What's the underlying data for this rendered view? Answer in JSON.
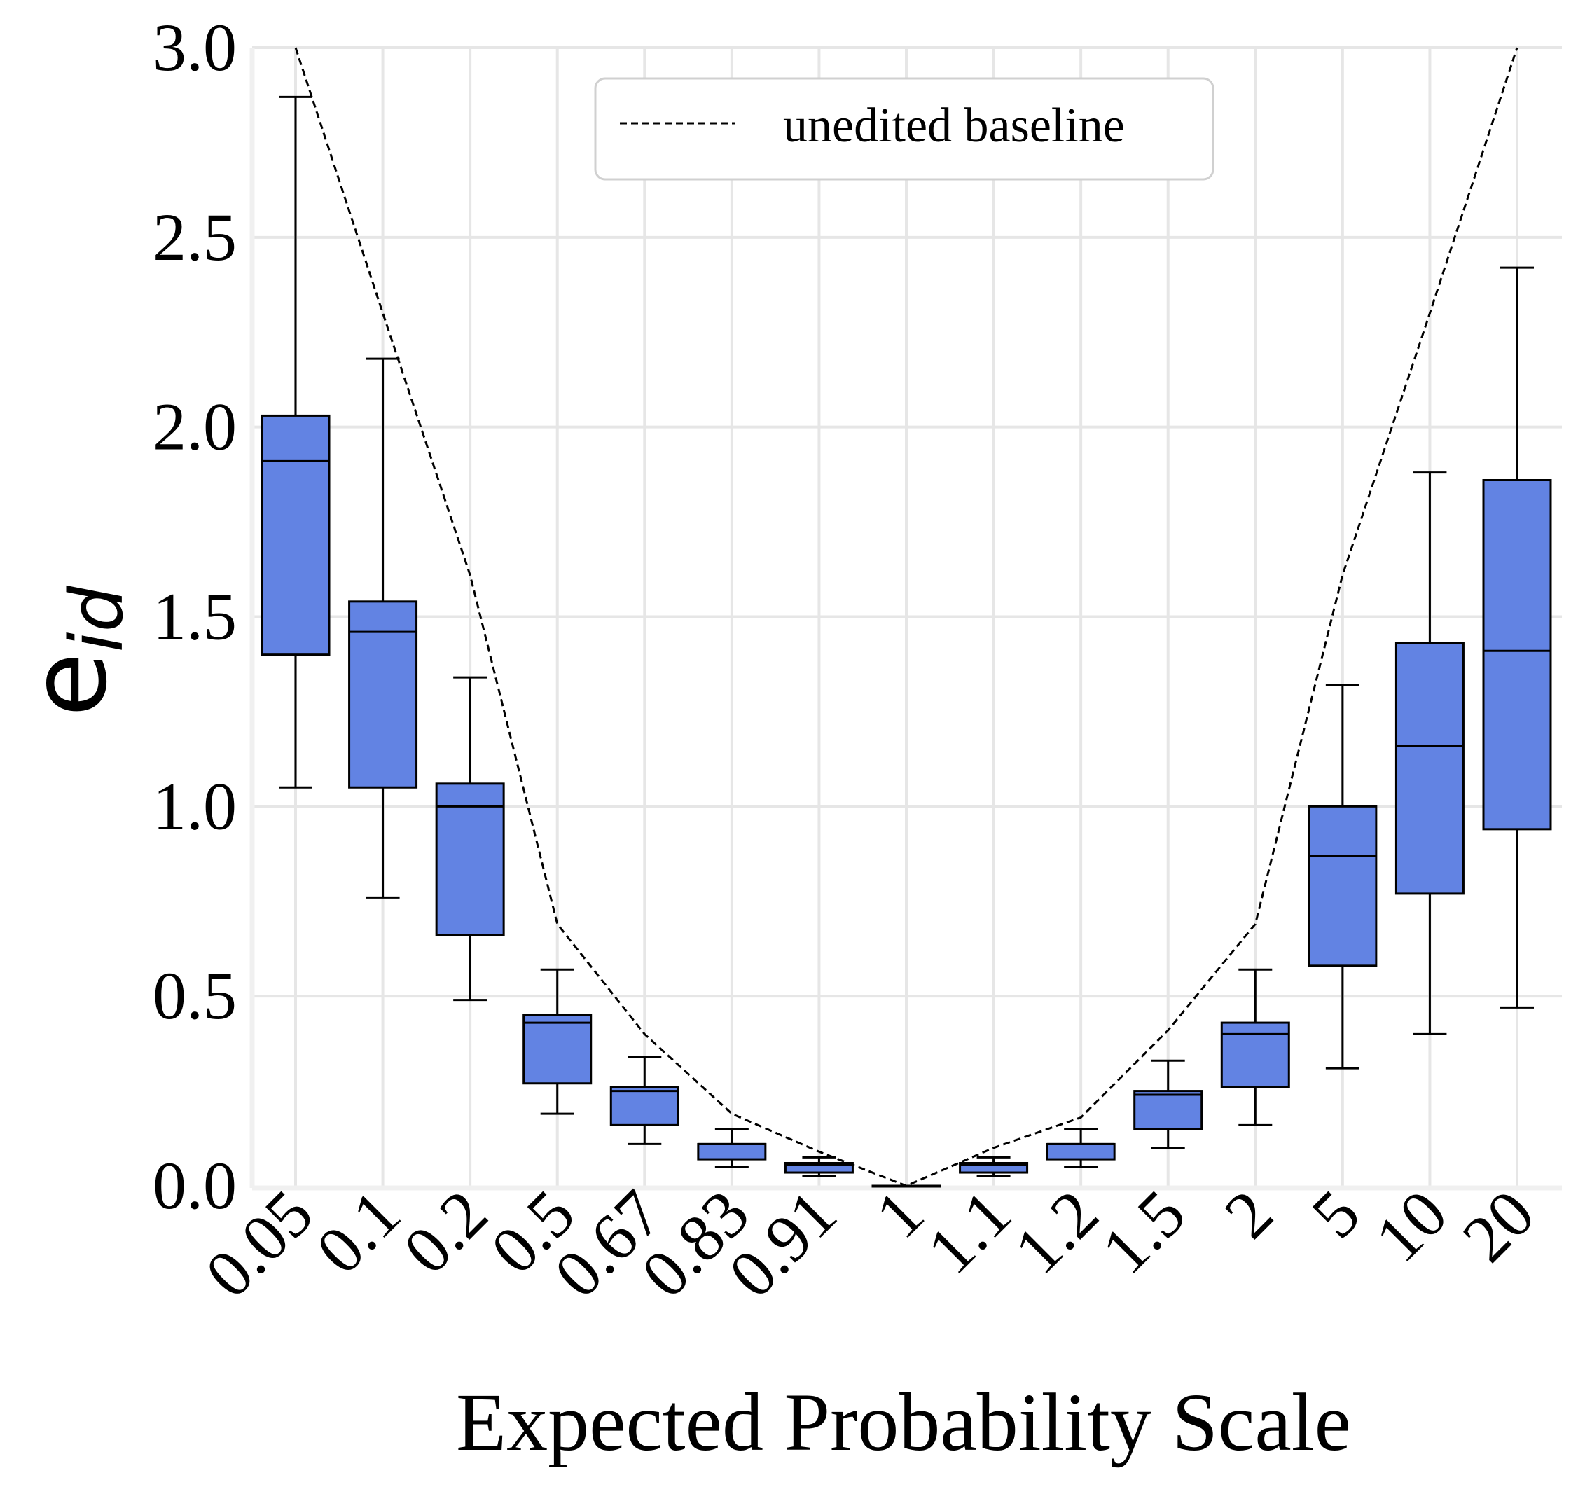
{
  "chart_data": {
    "type": "box",
    "title": "",
    "xlabel": "Expected Probability Scale",
    "ylabel": {
      "base": "e",
      "subscript": "id"
    },
    "ylim": [
      0,
      3.0
    ],
    "yticks": [
      "0.0",
      "0.5",
      "1.0",
      "1.5",
      "2.0",
      "2.5",
      "3.0"
    ],
    "grid": true,
    "legend": {
      "position": "top-center",
      "entries": [
        {
          "label": "unedited baseline",
          "style": "dashed"
        }
      ]
    },
    "colors": {
      "box_fill": "#6283E3",
      "box_edge": "#000000",
      "grid": "#E6E6E6",
      "baseline": "#000000"
    },
    "categories": [
      "0.05",
      "0.1",
      "0.2",
      "0.5",
      "0.67",
      "0.83",
      "0.91",
      "1",
      "1.1",
      "1.2",
      "1.5",
      "2",
      "5",
      "10",
      "20"
    ],
    "boxes": [
      {
        "category": "0.05",
        "whisker_low": 1.05,
        "q1": 1.4,
        "median": 1.91,
        "q3": 2.03,
        "whisker_high": 2.87
      },
      {
        "category": "0.1",
        "whisker_low": 0.76,
        "q1": 1.05,
        "median": 1.46,
        "q3": 1.54,
        "whisker_high": 2.18
      },
      {
        "category": "0.2",
        "whisker_low": 0.49,
        "q1": 0.66,
        "median": 1.0,
        "q3": 1.06,
        "whisker_high": 1.34
      },
      {
        "category": "0.5",
        "whisker_low": 0.19,
        "q1": 0.27,
        "median": 0.43,
        "q3": 0.45,
        "whisker_high": 0.57
      },
      {
        "category": "0.67",
        "whisker_low": 0.11,
        "q1": 0.16,
        "median": 0.25,
        "q3": 0.26,
        "whisker_high": 0.34
      },
      {
        "category": "0.83",
        "whisker_low": 0.05,
        "q1": 0.07,
        "median": 0.11,
        "q3": 0.11,
        "whisker_high": 0.15
      },
      {
        "category": "0.91",
        "whisker_low": 0.025,
        "q1": 0.035,
        "median": 0.055,
        "q3": 0.06,
        "whisker_high": 0.075
      },
      {
        "category": "1",
        "whisker_low": 0.0,
        "q1": 0.0,
        "median": 0.0,
        "q3": 0.0,
        "whisker_high": 0.0
      },
      {
        "category": "1.1",
        "whisker_low": 0.025,
        "q1": 0.035,
        "median": 0.055,
        "q3": 0.06,
        "whisker_high": 0.075
      },
      {
        "category": "1.2",
        "whisker_low": 0.05,
        "q1": 0.07,
        "median": 0.11,
        "q3": 0.11,
        "whisker_high": 0.15
      },
      {
        "category": "1.5",
        "whisker_low": 0.1,
        "q1": 0.15,
        "median": 0.24,
        "q3": 0.25,
        "whisker_high": 0.33
      },
      {
        "category": "2",
        "whisker_low": 0.16,
        "q1": 0.26,
        "median": 0.4,
        "q3": 0.43,
        "whisker_high": 0.57
      },
      {
        "category": "5",
        "whisker_low": 0.31,
        "q1": 0.58,
        "median": 0.87,
        "q3": 1.0,
        "whisker_high": 1.32
      },
      {
        "category": "10",
        "whisker_low": 0.4,
        "q1": 0.77,
        "median": 1.16,
        "q3": 1.43,
        "whisker_high": 1.88
      },
      {
        "category": "20",
        "whisker_low": 0.47,
        "q1": 0.94,
        "median": 1.41,
        "q3": 1.86,
        "whisker_high": 2.42
      }
    ],
    "baseline": {
      "name": "unedited baseline",
      "values": [
        3.0,
        2.3,
        1.61,
        0.69,
        0.4,
        0.19,
        0.09,
        0.0,
        0.1,
        0.18,
        0.41,
        0.69,
        1.61,
        2.3,
        3.0
      ]
    }
  }
}
